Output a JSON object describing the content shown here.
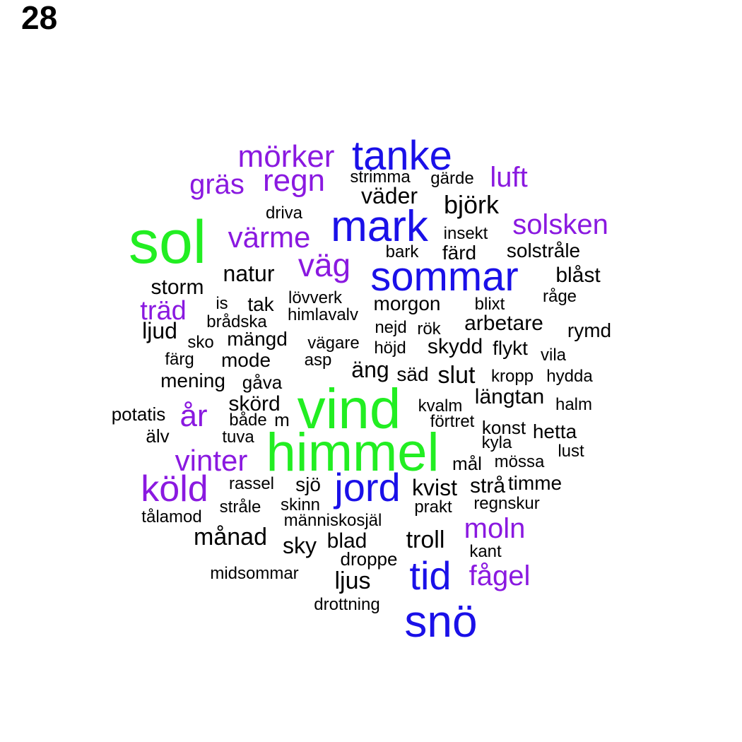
{
  "page_label": "28",
  "colors": {
    "green": "#22ee22",
    "blue": "#1a10e8",
    "purple": "#8a19e0",
    "black": "#000000"
  },
  "words": [
    {
      "text": "sol",
      "color": "green"
    },
    {
      "text": "vind",
      "color": "green"
    },
    {
      "text": "himmel",
      "color": "green"
    },
    {
      "text": "tanke",
      "color": "blue"
    },
    {
      "text": "mark",
      "color": "blue"
    },
    {
      "text": "sommar",
      "color": "blue"
    },
    {
      "text": "jord",
      "color": "blue"
    },
    {
      "text": "tid",
      "color": "blue"
    },
    {
      "text": "snö",
      "color": "blue"
    },
    {
      "text": "mörker",
      "color": "purple"
    },
    {
      "text": "regn",
      "color": "purple"
    },
    {
      "text": "gräs",
      "color": "purple"
    },
    {
      "text": "luft",
      "color": "purple"
    },
    {
      "text": "värme",
      "color": "purple"
    },
    {
      "text": "väg",
      "color": "purple"
    },
    {
      "text": "solsken",
      "color": "purple"
    },
    {
      "text": "träd",
      "color": "purple"
    },
    {
      "text": "år",
      "color": "purple"
    },
    {
      "text": "vinter",
      "color": "purple"
    },
    {
      "text": "köld",
      "color": "purple"
    },
    {
      "text": "moln",
      "color": "purple"
    },
    {
      "text": "fågel",
      "color": "purple"
    },
    {
      "text": "strimma",
      "color": "black"
    },
    {
      "text": "gärde",
      "color": "black"
    },
    {
      "text": "väder",
      "color": "black"
    },
    {
      "text": "björk",
      "color": "black"
    },
    {
      "text": "driva",
      "color": "black"
    },
    {
      "text": "insekt",
      "color": "black"
    },
    {
      "text": "bark",
      "color": "black"
    },
    {
      "text": "färd",
      "color": "black"
    },
    {
      "text": "solstråle",
      "color": "black"
    },
    {
      "text": "natur",
      "color": "black"
    },
    {
      "text": "blåst",
      "color": "black"
    },
    {
      "text": "storm",
      "color": "black"
    },
    {
      "text": "råge",
      "color": "black"
    },
    {
      "text": "lövverk",
      "color": "black"
    },
    {
      "text": "is",
      "color": "black"
    },
    {
      "text": "tak",
      "color": "black"
    },
    {
      "text": "morgon",
      "color": "black"
    },
    {
      "text": "blixt",
      "color": "black"
    },
    {
      "text": "himlavalv",
      "color": "black"
    },
    {
      "text": "brådska",
      "color": "black"
    },
    {
      "text": "nejd",
      "color": "black"
    },
    {
      "text": "rök",
      "color": "black"
    },
    {
      "text": "arbetare",
      "color": "black"
    },
    {
      "text": "rymd",
      "color": "black"
    },
    {
      "text": "ljud",
      "color": "black"
    },
    {
      "text": "mängd",
      "color": "black"
    },
    {
      "text": "sko",
      "color": "black"
    },
    {
      "text": "vägare",
      "color": "black"
    },
    {
      "text": "höjd",
      "color": "black"
    },
    {
      "text": "skydd",
      "color": "black"
    },
    {
      "text": "flykt",
      "color": "black"
    },
    {
      "text": "vila",
      "color": "black"
    },
    {
      "text": "färg",
      "color": "black"
    },
    {
      "text": "mode",
      "color": "black"
    },
    {
      "text": "asp",
      "color": "black"
    },
    {
      "text": "äng",
      "color": "black"
    },
    {
      "text": "säd",
      "color": "black"
    },
    {
      "text": "slut",
      "color": "black"
    },
    {
      "text": "kropp",
      "color": "black"
    },
    {
      "text": "hydda",
      "color": "black"
    },
    {
      "text": "mening",
      "color": "black"
    },
    {
      "text": "gåva",
      "color": "black"
    },
    {
      "text": "längtan",
      "color": "black"
    },
    {
      "text": "skörd",
      "color": "black"
    },
    {
      "text": "kvalm",
      "color": "black"
    },
    {
      "text": "halm",
      "color": "black"
    },
    {
      "text": "potatis",
      "color": "black"
    },
    {
      "text": "både",
      "color": "black"
    },
    {
      "text": "m",
      "color": "black"
    },
    {
      "text": "förtret",
      "color": "black"
    },
    {
      "text": "konst",
      "color": "black"
    },
    {
      "text": "hetta",
      "color": "black"
    },
    {
      "text": "älv",
      "color": "black"
    },
    {
      "text": "tuva",
      "color": "black"
    },
    {
      "text": "kyla",
      "color": "black"
    },
    {
      "text": "lust",
      "color": "black"
    },
    {
      "text": "mål",
      "color": "black"
    },
    {
      "text": "mössa",
      "color": "black"
    },
    {
      "text": "rassel",
      "color": "black"
    },
    {
      "text": "sjö",
      "color": "black"
    },
    {
      "text": "kvist",
      "color": "black"
    },
    {
      "text": "strå",
      "color": "black"
    },
    {
      "text": "timme",
      "color": "black"
    },
    {
      "text": "stråle",
      "color": "black"
    },
    {
      "text": "skinn",
      "color": "black"
    },
    {
      "text": "prakt",
      "color": "black"
    },
    {
      "text": "regnskur",
      "color": "black"
    },
    {
      "text": "tålamod",
      "color": "black"
    },
    {
      "text": "människosjäl",
      "color": "black"
    },
    {
      "text": "månad",
      "color": "black"
    },
    {
      "text": "sky",
      "color": "black"
    },
    {
      "text": "blad",
      "color": "black"
    },
    {
      "text": "troll",
      "color": "black"
    },
    {
      "text": "kant",
      "color": "black"
    },
    {
      "text": "droppe",
      "color": "black"
    },
    {
      "text": "midsommar",
      "color": "black"
    },
    {
      "text": "ljus",
      "color": "black"
    },
    {
      "text": "drottning",
      "color": "black"
    }
  ]
}
